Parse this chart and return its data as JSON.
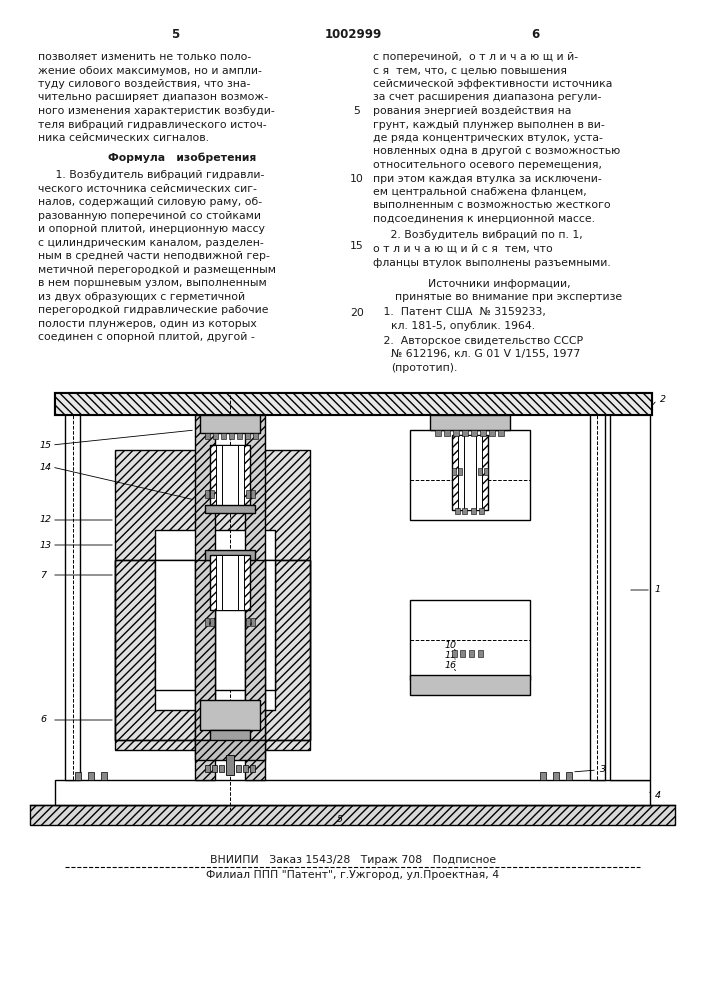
{
  "page_number_left": "5",
  "patent_number": "1002999",
  "page_number_right": "6",
  "col1_text": [
    "позволяет изменить не только поло-",
    "жение обоих максимумов, но и ампли-",
    "туду силового воздействия, что зна-",
    "чительно расширяет диапазон возмож-",
    "ного изменения характеристик возбуди-",
    "теля вибраций гидравлического источ-",
    "ника сейсмических сигналов."
  ],
  "formula_title": "Формула   изобретения",
  "col1_formula": [
    "     1. Возбудитель вибраций гидравли-",
    "ческого источника сейсмических сиг-",
    "налов, содержащий силовую раму, об-",
    "разованную поперечиной со стойками",
    "и опорной плитой, инерционную массу",
    "с цилиндрическим каналом, разделен-",
    "ным в средней части неподвижной гер-",
    "метичной перегородкой и размещенным",
    "в нем поршневым узлом, выполненным",
    "из двух образующих с герметичной",
    "перегородкой гидравлические рабочие",
    "полости плунжеров, один из которых",
    "соединен с опорной плитой, другой -"
  ],
  "col2_text": [
    "с поперечиной,  о т л и ч а ю щ и й-",
    "с я  тем, что, с целью повышения",
    "сейсмической эффективности источника",
    "за счет расширения диапазона регули-",
    "рования энергией воздействия на",
    "грунт, каждый плунжер выполнен в ви-",
    "де ряда концентрических втулок, уста-",
    "новленных одна в другой с возможностью",
    "относительного осевого перемещения,",
    "при этом каждая втулка за исключени-",
    "ем центральной снабжена фланцем,",
    "выполненным с возможностью жесткого",
    "подсоединения к инерционной массе."
  ],
  "col2_claim2": [
    "     2. Возбудитель вибраций по п. 1,",
    "о т л и ч а ю щ и й с я  тем, что",
    "фланцы втулок выполнены разъемными."
  ],
  "sources_title": "Источники информации,",
  "sources_subtitle": "принятые во внимание при экспертизе",
  "source1a": "   1.  Патент США  № 3159233,",
  "source1b": "кл. 181-5, опублик. 1964.",
  "source2a": "   2.  Авторское свидетельство СССР",
  "source2b": "№ 612196, кл. G 01 V 1/155, 1977",
  "source2c": "(прототип).",
  "line_number_5": "5",
  "line_number_10": "10",
  "line_number_15": "15",
  "line_number_20": "20",
  "footer_line1": "ВНИИПИ   Заказ 1543/28   Тираж 708   Подписное",
  "footer_line2": "Филиал ППП \"Патент\", г.Ужгород, ул.Проектная, 4",
  "bg_color": "#ffffff",
  "text_color": "#1a1a1a"
}
